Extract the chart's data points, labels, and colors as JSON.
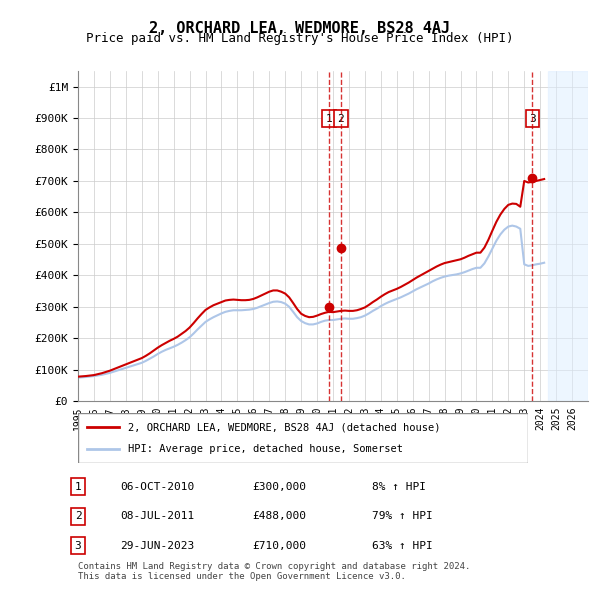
{
  "title": "2, ORCHARD LEA, WEDMORE, BS28 4AJ",
  "subtitle": "Price paid vs. HM Land Registry's House Price Index (HPI)",
  "ylabel_ticks": [
    "£0",
    "£100K",
    "£200K",
    "£300K",
    "£400K",
    "£500K",
    "£600K",
    "£700K",
    "£800K",
    "£900K",
    "£1M"
  ],
  "ylim": [
    0,
    1050000
  ],
  "yticks": [
    0,
    100000,
    200000,
    300000,
    400000,
    500000,
    600000,
    700000,
    800000,
    900000,
    1000000
  ],
  "xmin": 1995.0,
  "xmax": 2027.0,
  "hpi_color": "#aec6e8",
  "price_color": "#cc0000",
  "transaction_color": "#cc0000",
  "vline_color": "#cc0000",
  "hpi_line": {
    "years": [
      1995.0,
      1995.25,
      1995.5,
      1995.75,
      1996.0,
      1996.25,
      1996.5,
      1996.75,
      1997.0,
      1997.25,
      1997.5,
      1997.75,
      1998.0,
      1998.25,
      1998.5,
      1998.75,
      1999.0,
      1999.25,
      1999.5,
      1999.75,
      2000.0,
      2000.25,
      2000.5,
      2000.75,
      2001.0,
      2001.25,
      2001.5,
      2001.75,
      2002.0,
      2002.25,
      2002.5,
      2002.75,
      2003.0,
      2003.25,
      2003.5,
      2003.75,
      2004.0,
      2004.25,
      2004.5,
      2004.75,
      2005.0,
      2005.25,
      2005.5,
      2005.75,
      2006.0,
      2006.25,
      2006.5,
      2006.75,
      2007.0,
      2007.25,
      2007.5,
      2007.75,
      2008.0,
      2008.25,
      2008.5,
      2008.75,
      2009.0,
      2009.25,
      2009.5,
      2009.75,
      2010.0,
      2010.25,
      2010.5,
      2010.75,
      2011.0,
      2011.25,
      2011.5,
      2011.75,
      2012.0,
      2012.25,
      2012.5,
      2012.75,
      2013.0,
      2013.25,
      2013.5,
      2013.75,
      2014.0,
      2014.25,
      2014.5,
      2014.75,
      2015.0,
      2015.25,
      2015.5,
      2015.75,
      2016.0,
      2016.25,
      2016.5,
      2016.75,
      2017.0,
      2017.25,
      2017.5,
      2017.75,
      2018.0,
      2018.25,
      2018.5,
      2018.75,
      2019.0,
      2019.25,
      2019.5,
      2019.75,
      2020.0,
      2020.25,
      2020.5,
      2020.75,
      2021.0,
      2021.25,
      2021.5,
      2021.75,
      2022.0,
      2022.25,
      2022.5,
      2022.75,
      2023.0,
      2023.25,
      2023.5,
      2023.75,
      2024.0,
      2024.25
    ],
    "values": [
      75000,
      76000,
      77000,
      78500,
      80000,
      82000,
      84000,
      87000,
      90000,
      94000,
      98000,
      102000,
      106000,
      110000,
      114000,
      118000,
      122000,
      128000,
      135000,
      142000,
      150000,
      157000,
      163000,
      168000,
      173000,
      179000,
      186000,
      194000,
      203000,
      215000,
      228000,
      240000,
      252000,
      260000,
      267000,
      273000,
      279000,
      284000,
      287000,
      289000,
      289000,
      289000,
      290000,
      291000,
      293000,
      297000,
      302000,
      307000,
      312000,
      316000,
      317000,
      315000,
      310000,
      300000,
      284000,
      267000,
      255000,
      248000,
      244000,
      244000,
      247000,
      252000,
      256000,
      258000,
      258000,
      260000,
      262000,
      263000,
      262000,
      262000,
      264000,
      267000,
      272000,
      279000,
      287000,
      294000,
      302000,
      309000,
      315000,
      320000,
      325000,
      330000,
      336000,
      342000,
      349000,
      356000,
      362000,
      368000,
      374000,
      381000,
      387000,
      392000,
      396000,
      399000,
      401000,
      403000,
      406000,
      410000,
      415000,
      420000,
      424000,
      424000,
      438000,
      460000,
      485000,
      510000,
      530000,
      545000,
      555000,
      558000,
      555000,
      548000,
      435000,
      430000,
      432000,
      435000,
      437000,
      440000
    ]
  },
  "price_line": {
    "years": [
      1995.0,
      1995.25,
      1995.5,
      1995.75,
      1996.0,
      1996.25,
      1996.5,
      1996.75,
      1997.0,
      1997.25,
      1997.5,
      1997.75,
      1998.0,
      1998.25,
      1998.5,
      1998.75,
      1999.0,
      1999.25,
      1999.5,
      1999.75,
      2000.0,
      2000.25,
      2000.5,
      2000.75,
      2001.0,
      2001.25,
      2001.5,
      2001.75,
      2002.0,
      2002.25,
      2002.5,
      2002.75,
      2003.0,
      2003.25,
      2003.5,
      2003.75,
      2004.0,
      2004.25,
      2004.5,
      2004.75,
      2005.0,
      2005.25,
      2005.5,
      2005.75,
      2006.0,
      2006.25,
      2006.5,
      2006.75,
      2007.0,
      2007.25,
      2007.5,
      2007.75,
      2008.0,
      2008.25,
      2008.5,
      2008.75,
      2009.0,
      2009.25,
      2009.5,
      2009.75,
      2010.0,
      2010.25,
      2010.5,
      2010.75,
      2011.0,
      2011.25,
      2011.5,
      2011.75,
      2012.0,
      2012.25,
      2012.5,
      2012.75,
      2013.0,
      2013.25,
      2013.5,
      2013.75,
      2014.0,
      2014.25,
      2014.5,
      2014.75,
      2015.0,
      2015.25,
      2015.5,
      2015.75,
      2016.0,
      2016.25,
      2016.5,
      2016.75,
      2017.0,
      2017.25,
      2017.5,
      2017.75,
      2018.0,
      2018.25,
      2018.5,
      2018.75,
      2019.0,
      2019.25,
      2019.5,
      2019.75,
      2020.0,
      2020.25,
      2020.5,
      2020.75,
      2021.0,
      2021.25,
      2021.5,
      2021.75,
      2022.0,
      2022.25,
      2022.5,
      2022.75,
      2023.0,
      2023.25,
      2023.5,
      2023.75,
      2024.0,
      2024.25
    ],
    "values": [
      78000,
      79000,
      80000,
      81500,
      83000,
      86000,
      89000,
      93000,
      97000,
      102000,
      107000,
      112000,
      117000,
      122000,
      127000,
      132000,
      137000,
      144000,
      152000,
      161000,
      170000,
      178000,
      185000,
      192000,
      198000,
      205000,
      214000,
      223000,
      234000,
      248000,
      263000,
      277000,
      290000,
      298000,
      305000,
      310000,
      315000,
      320000,
      322000,
      323000,
      322000,
      321000,
      321000,
      322000,
      325000,
      330000,
      336000,
      342000,
      348000,
      352000,
      352000,
      348000,
      342000,
      330000,
      312000,
      293000,
      278000,
      271000,
      267000,
      268000,
      272000,
      277000,
      281000,
      284000,
      283000,
      285000,
      287000,
      288000,
      287000,
      287000,
      289000,
      293000,
      298000,
      306000,
      315000,
      323000,
      332000,
      340000,
      347000,
      352000,
      357000,
      363000,
      370000,
      377000,
      385000,
      393000,
      400000,
      407000,
      414000,
      421000,
      428000,
      434000,
      439000,
      442000,
      445000,
      448000,
      451000,
      456000,
      462000,
      467000,
      472000,
      472000,
      488000,
      513000,
      542000,
      570000,
      593000,
      611000,
      624000,
      628000,
      627000,
      618000,
      700000,
      695000,
      697000,
      700000,
      703000,
      706000
    ]
  },
  "transactions": [
    {
      "year": 2010.75,
      "price": 300000,
      "label": "1"
    },
    {
      "year": 2011.5,
      "price": 488000,
      "label": "2"
    },
    {
      "year": 2023.5,
      "price": 710000,
      "label": "3"
    }
  ],
  "vlines": [
    2010.75,
    2011.5,
    2023.5
  ],
  "shade_start": 2024.5,
  "shade_end": 2027.0,
  "xtick_years": [
    1995,
    1996,
    1997,
    1998,
    1999,
    2000,
    2001,
    2002,
    2003,
    2004,
    2005,
    2006,
    2007,
    2008,
    2009,
    2010,
    2011,
    2012,
    2013,
    2014,
    2015,
    2016,
    2017,
    2018,
    2019,
    2020,
    2021,
    2022,
    2023,
    2024,
    2025,
    2026
  ],
  "legend_price_label": "2, ORCHARD LEA, WEDMORE, BS28 4AJ (detached house)",
  "legend_hpi_label": "HPI: Average price, detached house, Somerset",
  "table_data": [
    {
      "num": "1",
      "date": "06-OCT-2010",
      "price": "£300,000",
      "change": "8% ↑ HPI"
    },
    {
      "num": "2",
      "date": "08-JUL-2011",
      "price": "£488,000",
      "change": "79% ↑ HPI"
    },
    {
      "num": "3",
      "date": "29-JUN-2023",
      "price": "£710,000",
      "change": "63% ↑ HPI"
    }
  ],
  "footer": "Contains HM Land Registry data © Crown copyright and database right 2024.\nThis data is licensed under the Open Government Licence v3.0.",
  "bg_color": "#ffffff",
  "grid_color": "#cccccc",
  "shade_color": "#ddeeff"
}
